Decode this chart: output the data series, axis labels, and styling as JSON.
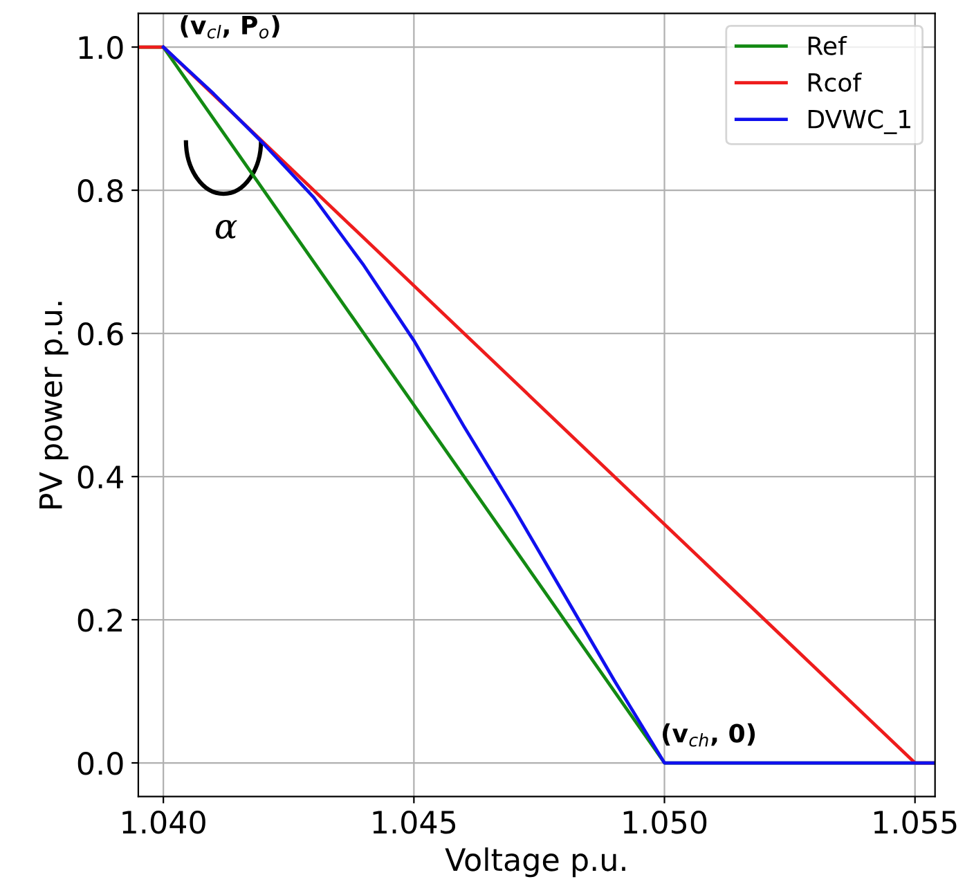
{
  "chart_data": {
    "type": "line",
    "xlabel": "Voltage p.u.",
    "ylabel": "PV power p.u.",
    "xlim": [
      1.0395,
      1.0554
    ],
    "ylim": [
      -0.047,
      1.047
    ],
    "xticks": [
      {
        "value": 1.04,
        "label": "1.040"
      },
      {
        "value": 1.045,
        "label": "1.045"
      },
      {
        "value": 1.05,
        "label": "1.050"
      },
      {
        "value": 1.055,
        "label": "1.055"
      }
    ],
    "yticks": [
      {
        "value": 0,
        "label": "0.0"
      },
      {
        "value": 0.2,
        "label": "0.2"
      },
      {
        "value": 0.4,
        "label": "0.4"
      },
      {
        "value": 0.6,
        "label": "0.6"
      },
      {
        "value": 0.8,
        "label": "0.8"
      },
      {
        "value": 1,
        "label": "1.0"
      }
    ],
    "grid": true,
    "legend": "top right",
    "series": [
      {
        "name": "Ref",
        "color": "#138a13",
        "x": [
          1.0395,
          1.04,
          1.05,
          1.0554
        ],
        "values": [
          1,
          1,
          0,
          0
        ]
      },
      {
        "name": "Rcof",
        "color": "#ee1c1c",
        "x": [
          1.0395,
          1.04,
          1.055,
          1.0554
        ],
        "values": [
          1,
          1,
          0,
          0
        ]
      },
      {
        "name": "DVWC_1",
        "color": "#1010ee",
        "x": [
          1.04,
          1.041,
          1.042,
          1.043,
          1.044,
          1.045,
          1.046,
          1.047,
          1.048,
          1.049,
          1.05,
          1.0554
        ],
        "values": [
          1,
          0.935,
          0.865,
          0.79,
          0.695,
          0.59,
          0.47,
          0.355,
          0.235,
          0.115,
          0,
          0
        ]
      }
    ],
    "annotations": [
      {
        "text": "(v$_{cl}$, P$_{o}$)",
        "x": 1.04,
        "y": 1.0
      },
      {
        "text": "(v$_{ch}$, 0)",
        "x": 1.05,
        "y": 0
      },
      "α"
    ]
  }
}
